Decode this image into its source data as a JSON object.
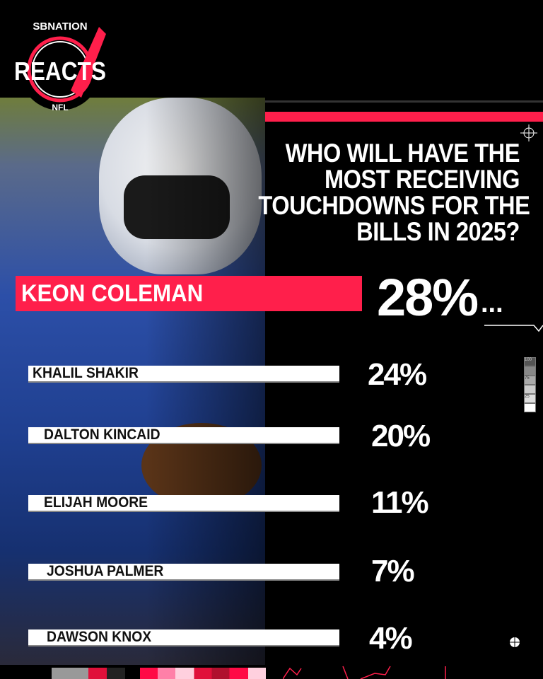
{
  "logo": {
    "top_text": "SBNATION",
    "main_text": "REACTS",
    "bottom_text": "NFL"
  },
  "question": [
    "WHO WILL HAVE THE",
    "MOST RECEIVING",
    "TOUCHDOWNS FOR THE",
    "BILLS IN 2025?"
  ],
  "colors": {
    "accent": "#ff1f4b",
    "background": "#000000",
    "bar": "#ffffff"
  },
  "chart_data": {
    "type": "bar",
    "title": "WHO WILL HAVE THE MOST RECEIVING TOUCHDOWNS FOR THE BILLS IN 2025?",
    "categories": [
      "KEON COLEMAN",
      "KHALIL SHAKIR",
      "DALTON KINCAID",
      "ELIJAH MOORE",
      "JOSHUA PALMER",
      "DAWSON KNOX"
    ],
    "values": [
      28,
      24,
      20,
      11,
      7,
      4
    ],
    "labels": [
      "28%",
      "24%",
      "20%",
      "11%",
      "7%",
      "4%"
    ],
    "unit": "%"
  },
  "lead_suffix": "...",
  "scale_labels": [
    "100",
    "75",
    "25"
  ]
}
